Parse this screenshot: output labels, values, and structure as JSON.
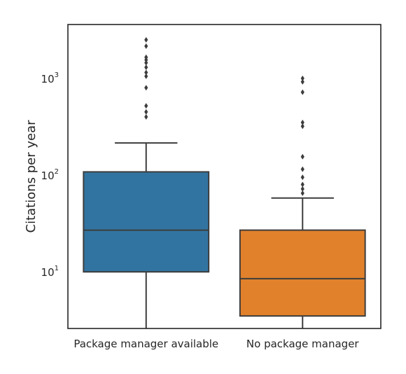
{
  "chart_data": {
    "type": "boxplot",
    "title": "",
    "xlabel": "",
    "ylabel": "Citations per year",
    "yscale": "log",
    "ylim": [
      2.6,
      3600
    ],
    "y_ticks": [
      {
        "value": 10,
        "base": "10",
        "exp": "1"
      },
      {
        "value": 100,
        "base": "10",
        "exp": "2"
      },
      {
        "value": 1000,
        "base": "10",
        "exp": "3"
      }
    ],
    "categories": [
      "Package manager available",
      "No package manager"
    ],
    "boxes": [
      {
        "name": "Package manager available",
        "color": "#3274a1",
        "whisker_low": 2.6,
        "q1": 10,
        "median": 27,
        "q3": 108,
        "whisker_high": 215,
        "outliers": [
          400,
          450,
          520,
          800,
          1050,
          1150,
          1300,
          1450,
          1550,
          1650,
          2150,
          2500
        ]
      },
      {
        "name": "No package manager",
        "color": "#e1812c",
        "whisker_low": 2.6,
        "q1": 3.5,
        "median": 8.5,
        "q3": 27,
        "whisker_high": 58,
        "outliers": [
          65,
          72,
          80,
          95,
          115,
          155,
          320,
          350,
          720,
          920,
          1000
        ]
      }
    ],
    "grid": false,
    "legend": "none"
  }
}
